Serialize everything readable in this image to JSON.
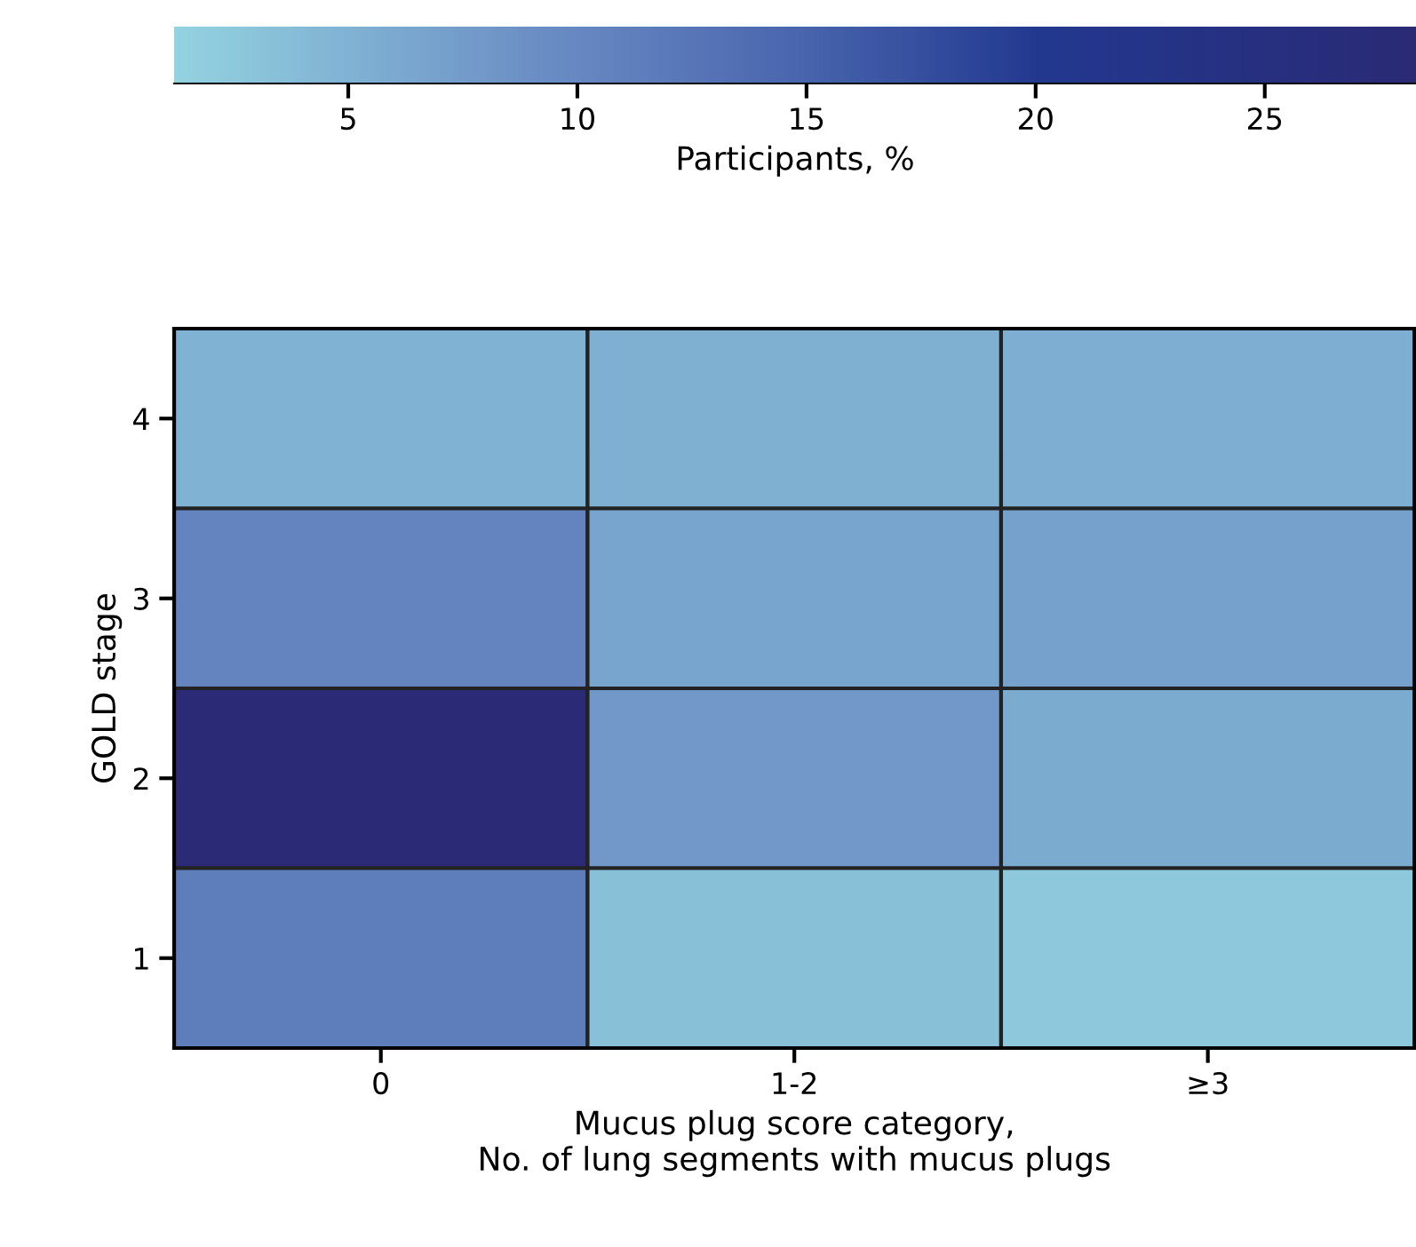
{
  "chart_data": {
    "type": "heatmap",
    "categories": [
      "0",
      "1-2",
      "≥3"
    ],
    "y_categories": [
      "4",
      "3",
      "2",
      "1"
    ],
    "cells": [
      [
        5.0,
        5.3,
        5.5
      ],
      [
        10.5,
        6.5,
        7.0
      ],
      [
        28.0,
        8.0,
        5.8
      ],
      [
        11.5,
        3.5,
        2.5
      ]
    ],
    "clim": [
      1.2,
      28.3
    ],
    "cticks": [
      5,
      10,
      15,
      20,
      25
    ],
    "clabel": "Participants, %",
    "xlabel": "Mucus plug score category,\nNo. of lung segments with mucus plugs",
    "ylabel": "GOLD stage"
  }
}
